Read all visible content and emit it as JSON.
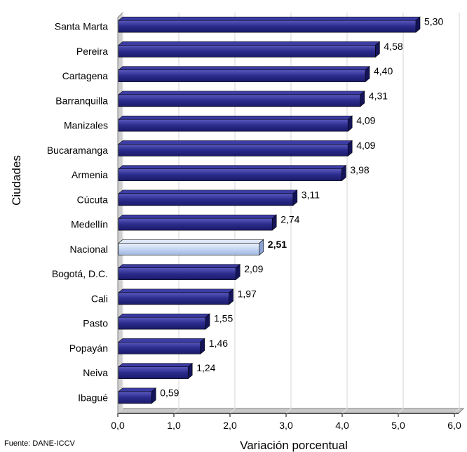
{
  "chart_data": {
    "type": "bar",
    "orientation": "horizontal",
    "categories": [
      "Santa Marta",
      "Pereira",
      "Cartagena",
      "Barranquilla",
      "Manizales",
      "Bucaramanga",
      "Armenia",
      "Cúcuta",
      "Medellín",
      "Nacional",
      "Bogotá, D.C.",
      "Cali",
      "Pasto",
      "Popayán",
      "Neiva",
      "Ibagué"
    ],
    "values": [
      5.3,
      4.58,
      4.4,
      4.31,
      4.09,
      4.09,
      3.98,
      3.11,
      2.74,
      2.51,
      2.09,
      1.97,
      1.55,
      1.46,
      1.24,
      0.59
    ],
    "value_labels": [
      "5,30",
      "4,58",
      "4,40",
      "4,31",
      "4,09",
      "4,09",
      "3,98",
      "3,11",
      "2,74",
      "2,51",
      "2,09",
      "1,97",
      "1,55",
      "1,46",
      "1,24",
      "0,59"
    ],
    "highlight": "Nacional",
    "xlabel": "Variación porcentual",
    "ylabel": "Ciudades",
    "xlim": [
      0,
      6
    ],
    "x_ticks": [
      "0,0",
      "1,0",
      "2,0",
      "3,0",
      "4,0",
      "5,0",
      "6,0"
    ],
    "grid": true,
    "colors": {
      "bar": "#2b2b8c",
      "highlight": "#c6d6f2",
      "bar_side": "#14145a",
      "wall": "#c0c0c0"
    }
  },
  "source": "Fuente: DANE-ICCV"
}
